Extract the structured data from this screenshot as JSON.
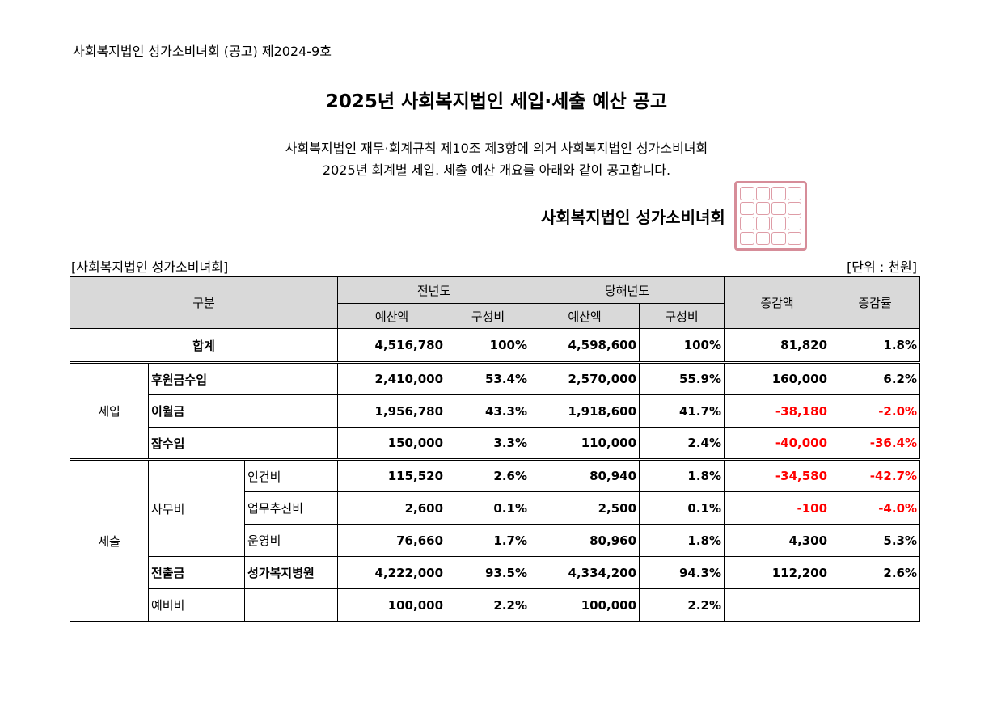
{
  "notice_number": "사회복지법인 성가소비녀회 (공고) 제2024-9호",
  "title": "2025년 사회복지법인 세입·세출 예산 공고",
  "intro_lines": [
    "사회복지법인 재무·회계규칙 제10조 제3항에 의거 사회복지법인 성가소비녀회",
    "2025년 회계별 세입. 세출 예산 개요를 아래와 같이 공고합니다."
  ],
  "signature": "사회복지법인 성가소비녀회",
  "organization_label": "[사회복지법인 성가소비녀회]",
  "unit_label": "[단위 : 천원]",
  "headers": {
    "category": "구분",
    "prev_year": "전년도",
    "this_year": "당해년도",
    "budget": "예산액",
    "ratio": "구성비",
    "change_amount": "증감액",
    "change_rate": "증감률"
  },
  "total": {
    "label": "합계",
    "prev_budget": "4,516,780",
    "prev_ratio": "100%",
    "cur_budget": "4,598,600",
    "cur_ratio": "100%",
    "change_amount": "81,820",
    "change_rate": "1.8%"
  },
  "revenue": {
    "group": "세입",
    "rows": [
      {
        "item": "후원금수입",
        "prev_budget": "2,410,000",
        "prev_ratio": "53.4%",
        "cur_budget": "2,570,000",
        "cur_ratio": "55.9%",
        "change_amount": "160,000",
        "change_rate": "6.2%"
      },
      {
        "item": "이월금",
        "prev_budget": "1,956,780",
        "prev_ratio": "43.3%",
        "cur_budget": "1,918,600",
        "cur_ratio": "41.7%",
        "change_amount": "-38,180",
        "change_rate": "-2.0%"
      },
      {
        "item": "잡수입",
        "prev_budget": "150,000",
        "prev_ratio": "3.3%",
        "cur_budget": "110,000",
        "cur_ratio": "2.4%",
        "change_amount": "-40,000",
        "change_rate": "-36.4%"
      }
    ]
  },
  "expense": {
    "group": "세출",
    "office": {
      "label": "사무비",
      "rows": [
        {
          "item": "인건비",
          "prev_budget": "115,520",
          "prev_ratio": "2.6%",
          "cur_budget": "80,940",
          "cur_ratio": "1.8%",
          "change_amount": "-34,580",
          "change_rate": "-42.7%"
        },
        {
          "item": "업무추진비",
          "prev_budget": "2,600",
          "prev_ratio": "0.1%",
          "cur_budget": "2,500",
          "cur_ratio": "0.1%",
          "change_amount": "-100",
          "change_rate": "-4.0%"
        },
        {
          "item": "운영비",
          "prev_budget": "76,660",
          "prev_ratio": "1.7%",
          "cur_budget": "80,960",
          "cur_ratio": "1.8%",
          "change_amount": "4,300",
          "change_rate": "5.3%"
        }
      ]
    },
    "transfer": {
      "label": "전출금",
      "item": "성가복지병원",
      "prev_budget": "4,222,000",
      "prev_ratio": "93.5%",
      "cur_budget": "4,334,200",
      "cur_ratio": "94.3%",
      "change_amount": "112,200",
      "change_rate": "2.6%"
    },
    "reserve": {
      "label": "예비비",
      "item": "",
      "prev_budget": "100,000",
      "prev_ratio": "2.2%",
      "cur_budget": "100,000",
      "cur_ratio": "2.2%",
      "change_amount": "",
      "change_rate": ""
    }
  },
  "colors": {
    "header_bg": "#d9d9d9",
    "negative": "#ff0000",
    "seal": "#d07a88"
  }
}
